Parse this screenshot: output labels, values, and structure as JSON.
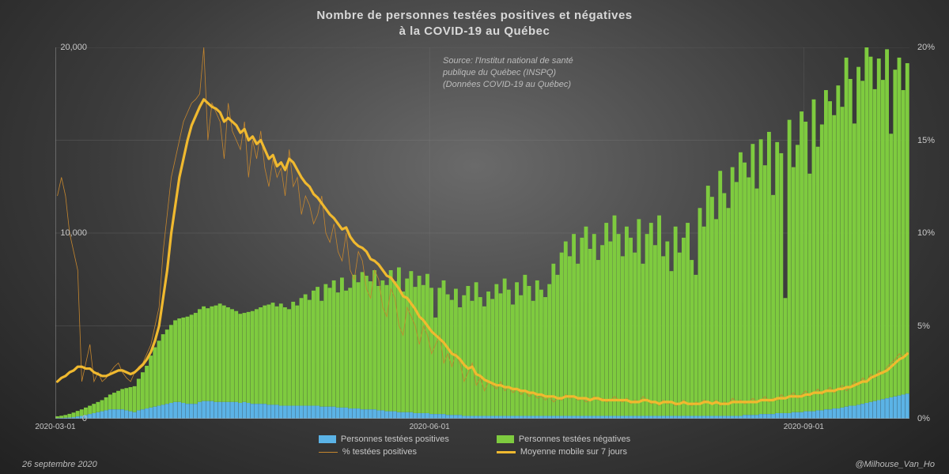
{
  "title_line1": "Nombre de personnes testées positives et négatives",
  "title_line2": "à la COVID-19 au Québec",
  "source_line1": "Source: l'Institut national de santé",
  "source_line2": "publique du Québec (INSPQ)",
  "source_line3": "(Données COVID-19 au Québec)",
  "footer_date": "26 septembre 2020",
  "footer_handle": "@Milhouse_Van_Ho",
  "chart": {
    "type": "combo-stacked-bar-and-dual-line",
    "background_gradient_center": "#6a6a6a",
    "background_gradient_mid": "#3c3c3c",
    "background_gradient_edge": "#212121",
    "text_color": "#d0d0d0",
    "gridline_color": "#8a8a8a",
    "axis_line_color": "#9a9a9a",
    "title_fontsize": 15,
    "label_fontsize": 11,
    "tick_fontsize": 10,
    "y_left": {
      "min": 0,
      "max": 20000,
      "ticks": [
        0,
        10000,
        20000
      ],
      "tick_labels": [
        "0",
        "10,000",
        "20,000"
      ]
    },
    "y_right": {
      "min": 0,
      "max": 20,
      "ticks": [
        0,
        5,
        10,
        15,
        20
      ],
      "tick_labels": [
        "0%",
        "5%",
        "10%",
        "15%",
        "20%"
      ]
    },
    "x_ticks": [
      {
        "label": "2020-03-01",
        "index": 0
      },
      {
        "label": "2020-06-01",
        "index": 92
      },
      {
        "label": "2020-09-01",
        "index": 184
      }
    ],
    "n_days": 210,
    "colors": {
      "positive_bar": "#5bb3e6",
      "negative_bar": "#7ecb3f",
      "pct_line_thin": "#c5862e",
      "avg_line_thick": "#f0b92f"
    },
    "line_widths": {
      "pct_thin": 0.8,
      "avg_thick": 3.2
    },
    "legend": {
      "positive": "Personnes testées positives",
      "negative": "Personnes testées négatives",
      "pct": "% testées positives",
      "avg": "Moyenne mobile sur 7 jours"
    },
    "data": {
      "positive": [
        30,
        40,
        50,
        60,
        80,
        120,
        150,
        200,
        250,
        300,
        350,
        400,
        450,
        500,
        500,
        500,
        500,
        450,
        400,
        350,
        450,
        500,
        550,
        600,
        650,
        700,
        750,
        800,
        850,
        900,
        900,
        850,
        800,
        800,
        800,
        900,
        950,
        950,
        950,
        900,
        900,
        900,
        900,
        900,
        900,
        850,
        900,
        850,
        800,
        800,
        800,
        800,
        750,
        750,
        750,
        700,
        700,
        700,
        700,
        700,
        700,
        700,
        700,
        700,
        700,
        650,
        650,
        650,
        650,
        600,
        600,
        600,
        550,
        550,
        550,
        500,
        500,
        500,
        500,
        450,
        450,
        400,
        400,
        400,
        350,
        350,
        350,
        350,
        300,
        300,
        300,
        300,
        250,
        250,
        250,
        250,
        200,
        200,
        200,
        200,
        150,
        150,
        150,
        150,
        150,
        150,
        150,
        150,
        150,
        150,
        150,
        150,
        150,
        150,
        150,
        150,
        150,
        150,
        150,
        150,
        150,
        150,
        150,
        150,
        150,
        150,
        150,
        150,
        150,
        150,
        150,
        150,
        150,
        150,
        150,
        150,
        150,
        150,
        150,
        150,
        150,
        150,
        150,
        150,
        150,
        150,
        150,
        150,
        150,
        150,
        150,
        150,
        150,
        150,
        150,
        150,
        150,
        150,
        150,
        150,
        150,
        150,
        150,
        150,
        150,
        150,
        150,
        150,
        150,
        200,
        200,
        200,
        200,
        250,
        250,
        250,
        250,
        300,
        300,
        300,
        300,
        350,
        350,
        350,
        400,
        400,
        400,
        450,
        450,
        500,
        500,
        550,
        550,
        600,
        650,
        700,
        700,
        750,
        800,
        850,
        900,
        950,
        1000,
        1050,
        1100,
        1150,
        1200,
        1250,
        1300,
        1350
      ],
      "negative": [
        100,
        120,
        150,
        200,
        250,
        300,
        350,
        400,
        450,
        500,
        550,
        600,
        700,
        800,
        900,
        1000,
        1100,
        1200,
        1300,
        1400,
        1700,
        2000,
        2300,
        2800,
        3200,
        3500,
        3800,
        4000,
        4200,
        4400,
        4500,
        4600,
        4700,
        4800,
        4900,
        5000,
        5100,
        5000,
        5100,
        5200,
        5300,
        5200,
        5100,
        5000,
        4900,
        4800,
        4800,
        4900,
        5000,
        5100,
        5200,
        5300,
        5400,
        5500,
        5300,
        5500,
        5300,
        5200,
        5600,
        5400,
        5800,
        6000,
        5700,
        6200,
        6400,
        5700,
        6600,
        6400,
        6800,
        6200,
        7000,
        6300,
        6500,
        7200,
        6800,
        7400,
        7200,
        6900,
        7500,
        6700,
        7000,
        6800,
        7600,
        7000,
        7800,
        6500,
        7200,
        7600,
        6800,
        7400,
        6900,
        7500,
        6800,
        5200,
        6800,
        7200,
        6500,
        6200,
        6800,
        5800,
        6500,
        7000,
        6200,
        7200,
        6400,
        5900,
        6700,
        6300,
        7100,
        6600,
        7400,
        6800,
        6000,
        7200,
        6500,
        7600,
        7000,
        6200,
        7300,
        6800,
        6400,
        7100,
        8200,
        7600,
        8800,
        9400,
        8600,
        9800,
        8200,
        9600,
        10200,
        9000,
        9800,
        8400,
        9200,
        10400,
        9400,
        10800,
        9800,
        8600,
        10200,
        9600,
        8800,
        10600,
        8200,
        9800,
        10400,
        9200,
        10800,
        8600,
        9400,
        7800,
        10200,
        8800,
        9600,
        10400,
        8400,
        7600,
        11200,
        10200,
        12400,
        11800,
        10600,
        13200,
        12000,
        11200,
        13400,
        12600,
        14200,
        13600,
        12800,
        14600,
        12200,
        14800,
        13400,
        15200,
        11800,
        14600,
        14000,
        6200,
        15800,
        13200,
        14400,
        16200,
        15600,
        12800,
        16800,
        14200,
        15400,
        17200,
        16600,
        15800,
        17400,
        16200,
        18800,
        17600,
        15200,
        18200,
        17400,
        19200,
        18600,
        16800,
        18400,
        17200,
        18800,
        14200,
        17600,
        18200,
        16400,
        17800,
        15200
      ],
      "pct_daily": [
        12.0,
        13.0,
        12.0,
        10.0,
        9.0,
        8.0,
        2.0,
        3.0,
        4.0,
        2.0,
        2.5,
        2.0,
        2.2,
        2.5,
        2.8,
        3.0,
        2.5,
        2.2,
        2.0,
        2.5,
        2.8,
        3.0,
        3.5,
        4.0,
        5.0,
        6.0,
        9.0,
        11.0,
        13.0,
        14.0,
        15.0,
        16.0,
        16.5,
        17.0,
        17.2,
        17.5,
        20.0,
        15.0,
        17.0,
        16.5,
        16.0,
        14.0,
        17.0,
        15.5,
        15.0,
        14.5,
        16.0,
        13.0,
        15.0,
        14.0,
        15.5,
        13.5,
        12.5,
        14.0,
        13.0,
        13.5,
        12.0,
        14.5,
        12.5,
        13.0,
        11.0,
        12.0,
        11.5,
        10.5,
        11.0,
        12.0,
        10.0,
        9.5,
        10.5,
        9.0,
        8.5,
        10.0,
        8.0,
        7.5,
        9.0,
        8.5,
        7.0,
        6.5,
        8.0,
        7.5,
        6.0,
        5.5,
        7.0,
        6.5,
        5.0,
        4.5,
        6.0,
        5.5,
        5.0,
        4.0,
        5.0,
        4.5,
        3.5,
        4.0,
        4.5,
        3.0,
        3.5,
        2.8,
        3.5,
        3.0,
        2.0,
        2.5,
        3.0,
        1.8,
        2.2,
        1.5,
        2.0,
        1.8,
        1.6,
        2.0,
        1.5,
        1.7,
        1.4,
        1.6,
        1.3,
        1.5,
        1.2,
        1.4,
        1.1,
        1.2,
        1.0,
        1.2,
        0.9,
        1.1,
        1.0,
        1.3,
        1.1,
        1.2,
        1.0,
        1.1,
        0.9,
        1.0,
        1.2,
        1.0,
        1.1,
        0.9,
        1.0,
        1.2,
        1.0,
        0.9,
        1.1,
        0.8,
        1.0,
        0.9,
        1.2,
        1.0,
        0.8,
        0.9,
        0.7,
        1.0,
        0.8,
        0.9,
        0.7,
        0.8,
        1.0,
        0.8,
        0.7,
        0.9,
        0.8,
        1.0,
        0.9,
        0.8,
        1.0,
        0.7,
        0.9,
        0.8,
        1.1,
        0.9,
        1.0,
        0.8,
        0.9,
        1.1,
        0.9,
        1.0,
        1.2,
        0.9,
        1.1,
        1.0,
        1.3,
        1.1,
        1.2,
        1.4,
        1.1,
        1.3,
        1.5,
        1.2,
        1.4,
        1.6,
        1.3,
        1.5,
        1.7,
        1.4,
        1.6,
        1.8,
        1.5,
        1.7,
        2.0,
        1.8,
        2.2,
        2.0,
        2.4,
        2.2,
        2.6,
        2.4,
        2.8,
        3.0,
        3.2,
        3.5,
        3.3,
        3.6
      ],
      "avg7": [
        2.0,
        2.2,
        2.3,
        2.5,
        2.6,
        2.8,
        2.8,
        2.7,
        2.7,
        2.5,
        2.4,
        2.3,
        2.3,
        2.4,
        2.5,
        2.6,
        2.6,
        2.5,
        2.4,
        2.5,
        2.7,
        2.9,
        3.2,
        3.6,
        4.2,
        5.0,
        6.5,
        8.0,
        10.0,
        11.5,
        13.0,
        14.0,
        15.0,
        15.8,
        16.3,
        16.8,
        17.2,
        17.0,
        16.8,
        16.7,
        16.5,
        16.0,
        16.2,
        16.0,
        15.8,
        15.4,
        15.6,
        15.0,
        15.2,
        14.8,
        15.0,
        14.5,
        14.0,
        14.2,
        13.6,
        13.8,
        13.4,
        14.0,
        13.8,
        13.4,
        13.0,
        12.7,
        12.5,
        12.1,
        11.9,
        11.6,
        11.3,
        11.0,
        10.8,
        10.5,
        10.2,
        10.3,
        9.8,
        9.5,
        9.3,
        9.2,
        9.0,
        8.6,
        8.5,
        8.3,
        8.0,
        7.7,
        7.6,
        7.3,
        7.0,
        6.6,
        6.5,
        6.2,
        5.9,
        5.5,
        5.3,
        5.0,
        4.7,
        4.5,
        4.3,
        4.1,
        3.8,
        3.5,
        3.4,
        3.2,
        2.9,
        2.7,
        2.8,
        2.4,
        2.3,
        2.1,
        2.0,
        1.9,
        1.8,
        1.8,
        1.7,
        1.7,
        1.6,
        1.6,
        1.5,
        1.5,
        1.4,
        1.4,
        1.3,
        1.3,
        1.2,
        1.2,
        1.2,
        1.1,
        1.1,
        1.2,
        1.2,
        1.2,
        1.1,
        1.1,
        1.1,
        1.0,
        1.1,
        1.1,
        1.0,
        1.0,
        1.0,
        1.0,
        1.0,
        1.0,
        1.0,
        0.9,
        0.9,
        0.9,
        1.0,
        1.0,
        0.9,
        0.9,
        0.8,
        0.9,
        0.9,
        0.9,
        0.8,
        0.8,
        0.9,
        0.8,
        0.8,
        0.8,
        0.8,
        0.9,
        0.9,
        0.8,
        0.9,
        0.8,
        0.8,
        0.8,
        0.9,
        0.9,
        0.9,
        0.9,
        0.9,
        0.9,
        0.9,
        1.0,
        1.0,
        1.0,
        1.0,
        1.1,
        1.1,
        1.1,
        1.2,
        1.2,
        1.2,
        1.2,
        1.3,
        1.3,
        1.4,
        1.4,
        1.4,
        1.5,
        1.5,
        1.5,
        1.6,
        1.6,
        1.7,
        1.7,
        1.8,
        1.9,
        2.0,
        2.0,
        2.2,
        2.3,
        2.4,
        2.5,
        2.6,
        2.8,
        3.0,
        3.2,
        3.3,
        3.5
      ]
    }
  }
}
